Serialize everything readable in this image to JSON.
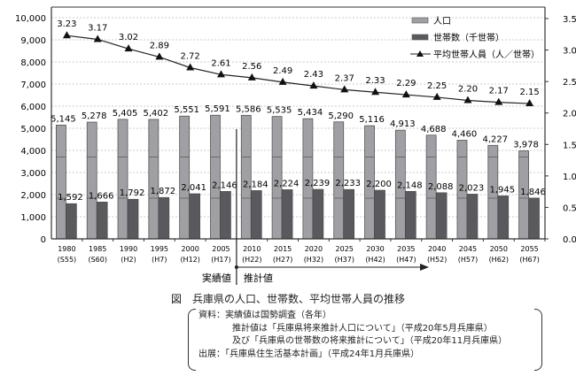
{
  "chart_data": {
    "type": "bar+line",
    "categories": [
      "1980",
      "1985",
      "1990",
      "1995",
      "2000",
      "2005",
      "2010",
      "2015",
      "2020",
      "2025",
      "2030",
      "2035",
      "2040",
      "2045",
      "2050",
      "2055"
    ],
    "sub_categories": [
      "(S55)",
      "(S60)",
      "(H2)",
      "(H7)",
      "(H12)",
      "(H17)",
      "(H22)",
      "(H27)",
      "(H32)",
      "(H37)",
      "(H42)",
      "(H47)",
      "(H52)",
      "(H57)",
      "(H62)",
      "(H67)"
    ],
    "series": [
      {
        "name": "人口",
        "type": "bar",
        "axis": "left",
        "color": "#a0a0a4",
        "values": [
          5145,
          5278,
          5405,
          5402,
          5551,
          5591,
          5586,
          5535,
          5434,
          5290,
          5116,
          4913,
          4688,
          4460,
          4227,
          3978
        ]
      },
      {
        "name": "世帯数（千世帯）",
        "type": "bar",
        "axis": "left",
        "color": "#5a5a5e",
        "values": [
          1592,
          1666,
          1792,
          1872,
          2041,
          2146,
          2184,
          2224,
          2239,
          2233,
          2200,
          2148,
          2088,
          2023,
          1945,
          1846
        ]
      },
      {
        "name": "平均世帯人員（人／世帯）",
        "type": "line",
        "axis": "right",
        "marker": "triangle",
        "color": "#222222",
        "values": [
          3.23,
          3.17,
          3.02,
          2.89,
          2.72,
          2.61,
          2.56,
          2.49,
          2.43,
          2.37,
          2.33,
          2.29,
          2.25,
          2.2,
          2.17,
          2.15
        ]
      }
    ],
    "y_left": {
      "ylim": [
        0,
        10000
      ],
      "ticks": [
        "0",
        "1,000",
        "2,000",
        "3,000",
        "4,000",
        "5,000",
        "6,000",
        "7,000",
        "8,000",
        "9,000",
        "10,000"
      ]
    },
    "y_right": {
      "ylim": [
        0,
        3.5
      ],
      "ticks": [
        "0.0",
        "0.5",
        "1.0",
        "1.5",
        "2.0",
        "2.5",
        "3.0",
        "3.5"
      ]
    },
    "grid": true,
    "legend_placement": "top-right",
    "annotations": {
      "actual": "実績値",
      "projected": "推計値"
    }
  },
  "caption": "図　兵庫県の人口、世帯数、平均世帯人員の推移",
  "notes": [
    "資料：実績値は国勢調査（各年）",
    "推計値は「兵庫県将来推計人口について」（平成20年5月兵庫県）",
    "及び「兵庫県の世帯数の将来推計について」（平成20年11月兵庫県）",
    "出展：「兵庫県住生活基本計画」（平成24年1月兵庫県）"
  ]
}
